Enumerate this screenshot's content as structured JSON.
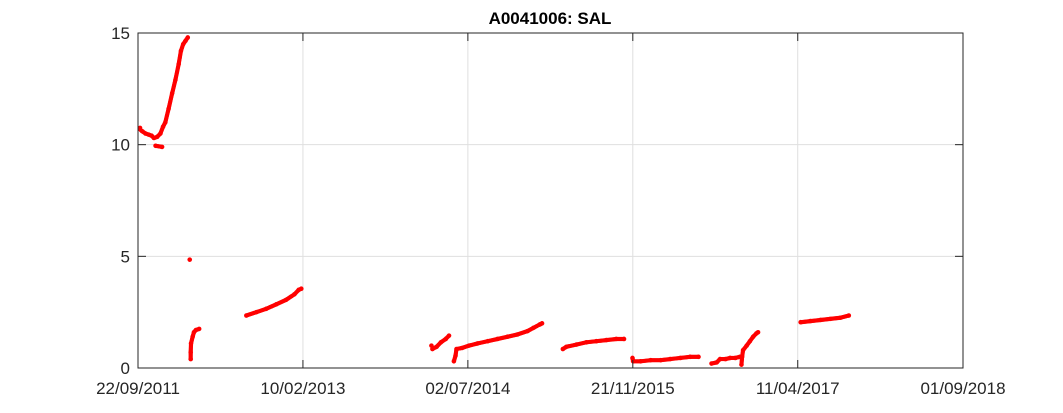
{
  "chart_data": {
    "type": "scatter",
    "title": "A0041006: SAL",
    "xlabel": "",
    "ylabel": "",
    "x_axis_type": "date",
    "xlim": [
      "2011-09-22",
      "2018-09-01"
    ],
    "ylim": [
      0,
      15
    ],
    "x_ticks": [
      "22/09/2011",
      "10/02/2013",
      "02/07/2014",
      "21/11/2015",
      "11/04/2017",
      "01/09/2018"
    ],
    "y_ticks": [
      0,
      5,
      10,
      15
    ],
    "grid": true,
    "marker_color": "#ff0000",
    "series": [
      {
        "segments": [
          [
            [
              "2011-09-22",
              10.75
            ],
            [
              "2011-10-05",
              10.6
            ],
            [
              "2011-10-15",
              10.5
            ],
            [
              "2011-10-25",
              10.45
            ],
            [
              "2011-11-03",
              10.4
            ],
            [
              "2011-11-10",
              10.3
            ],
            [
              "2011-11-20",
              10.35
            ],
            [
              "2011-11-30",
              10.5
            ],
            [
              "2011-12-08",
              10.8
            ],
            [
              "2011-12-15",
              11.0
            ],
            [
              "2011-12-25",
              11.6
            ],
            [
              "2012-01-05",
              12.3
            ],
            [
              "2012-01-15",
              12.9
            ],
            [
              "2012-01-25",
              13.6
            ],
            [
              "2012-02-01",
              14.2
            ],
            [
              "2012-02-08",
              14.5
            ],
            [
              "2012-02-15",
              14.65
            ],
            [
              "2012-02-22",
              14.8
            ]
          ],
          [
            [
              "2011-11-15",
              9.95
            ],
            [
              "2011-12-05",
              9.9
            ]
          ],
          [
            [
              "2012-02-28",
              4.85
            ]
          ],
          [
            [
              "2012-03-02",
              0.4
            ],
            [
              "2012-03-02",
              0.7
            ],
            [
              "2012-03-03",
              1.1
            ],
            [
              "2012-03-08",
              1.4
            ],
            [
              "2012-03-12",
              1.6
            ],
            [
              "2012-03-18",
              1.7
            ],
            [
              "2012-03-28",
              1.75
            ]
          ],
          [
            [
              "2012-08-20",
              2.35
            ],
            [
              "2012-09-20",
              2.5
            ],
            [
              "2012-10-20",
              2.65
            ],
            [
              "2012-11-20",
              2.85
            ],
            [
              "2012-12-20",
              3.05
            ],
            [
              "2013-01-15",
              3.3
            ],
            [
              "2013-01-28",
              3.5
            ],
            [
              "2013-02-05",
              3.55
            ]
          ],
          [
            [
              "2014-03-15",
              0.85
            ],
            [
              "2014-03-28",
              0.95
            ],
            [
              "2014-04-10",
              1.15
            ],
            [
              "2014-04-25",
              1.3
            ],
            [
              "2014-05-05",
              1.45
            ]
          ],
          [
            [
              "2014-03-12",
              1.0
            ]
          ],
          [
            [
              "2014-05-20",
              0.3
            ],
            [
              "2014-05-25",
              0.55
            ],
            [
              "2014-05-28",
              0.85
            ],
            [
              "2014-06-15",
              0.9
            ],
            [
              "2014-07-05",
              1.0
            ],
            [
              "2014-08-01",
              1.1
            ],
            [
              "2014-09-01",
              1.2
            ],
            [
              "2014-10-01",
              1.3
            ],
            [
              "2014-11-01",
              1.4
            ],
            [
              "2014-12-01",
              1.5
            ],
            [
              "2015-01-01",
              1.65
            ],
            [
              "2015-01-20",
              1.8
            ],
            [
              "2015-02-08",
              1.95
            ],
            [
              "2015-02-15",
              2.0
            ]
          ],
          [
            [
              "2015-04-20",
              0.85
            ],
            [
              "2015-05-01",
              0.95
            ],
            [
              "2015-06-01",
              1.05
            ],
            [
              "2015-07-01",
              1.15
            ],
            [
              "2015-08-01",
              1.2
            ],
            [
              "2015-09-01",
              1.25
            ],
            [
              "2015-10-01",
              1.3
            ],
            [
              "2015-10-25",
              1.3
            ]
          ],
          [
            [
              "2015-11-20",
              0.45
            ],
            [
              "2015-11-22",
              0.3
            ],
            [
              "2015-12-15",
              0.3
            ],
            [
              "2016-01-15",
              0.35
            ],
            [
              "2016-02-15",
              0.35
            ],
            [
              "2016-03-15",
              0.4
            ],
            [
              "2016-04-15",
              0.45
            ],
            [
              "2016-05-15",
              0.5
            ],
            [
              "2016-06-10",
              0.5
            ]
          ],
          [
            [
              "2016-07-20",
              0.2
            ],
            [
              "2016-08-05",
              0.25
            ],
            [
              "2016-08-15",
              0.4
            ],
            [
              "2016-09-01",
              0.4
            ],
            [
              "2016-09-15",
              0.45
            ],
            [
              "2016-10-01",
              0.45
            ],
            [
              "2016-10-15",
              0.5
            ]
          ],
          [
            [
              "2016-10-20",
              0.15
            ],
            [
              "2016-10-22",
              0.5
            ],
            [
              "2016-10-25",
              0.8
            ],
            [
              "2016-11-05",
              1.0
            ],
            [
              "2016-11-15",
              1.2
            ],
            [
              "2016-11-25",
              1.4
            ],
            [
              "2016-12-05",
              1.55
            ],
            [
              "2016-12-10",
              1.6
            ]
          ],
          [
            [
              "2017-04-20",
              2.05
            ],
            [
              "2017-05-20",
              2.1
            ],
            [
              "2017-06-20",
              2.15
            ],
            [
              "2017-07-20",
              2.2
            ],
            [
              "2017-08-20",
              2.25
            ],
            [
              "2017-09-15",
              2.35
            ]
          ]
        ]
      }
    ]
  }
}
